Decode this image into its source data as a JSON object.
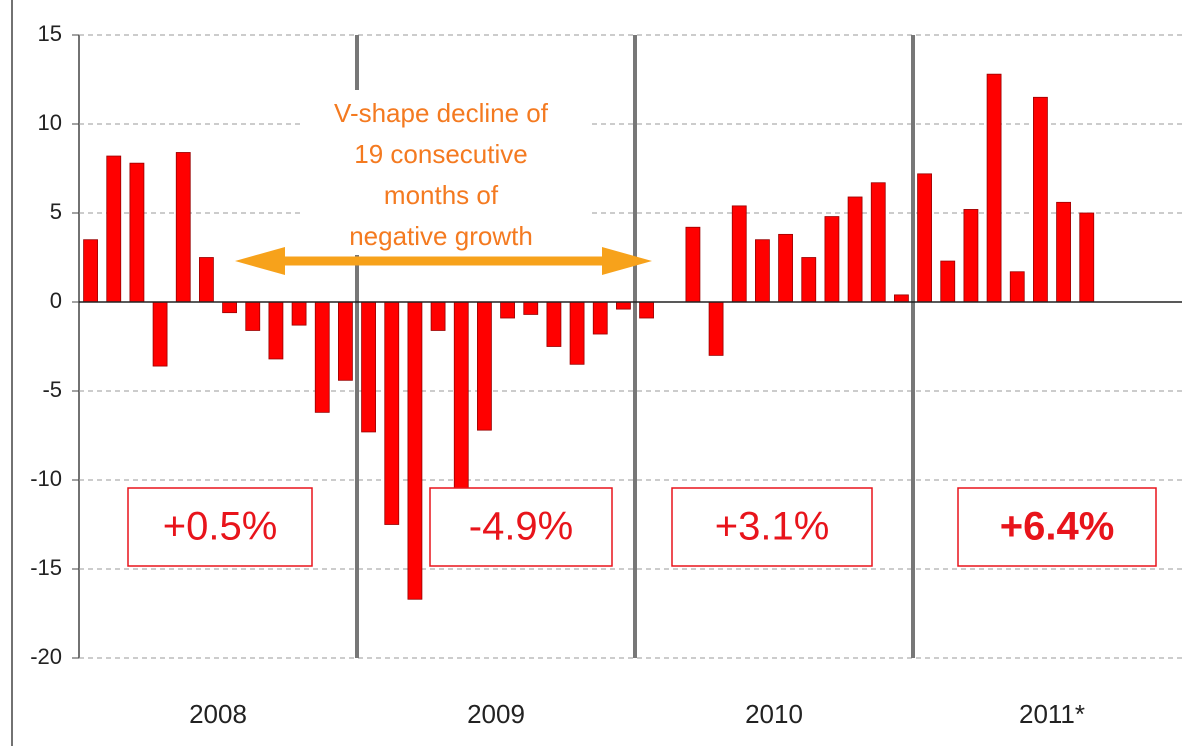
{
  "chart_data": {
    "type": "bar",
    "categories": [
      null,
      null,
      null,
      null,
      null,
      null,
      null,
      null,
      null,
      null,
      null,
      null,
      null,
      null,
      null,
      null,
      null,
      null,
      null,
      null,
      null,
      null,
      null,
      null,
      null,
      null,
      null,
      null,
      null,
      null,
      null,
      null,
      null,
      null,
      null,
      null,
      null,
      null,
      null,
      null,
      null,
      null,
      null,
      null
    ],
    "values": [
      3.5,
      8.2,
      7.8,
      -3.6,
      8.4,
      2.5,
      -0.6,
      -1.6,
      -3.2,
      -1.3,
      -6.2,
      -4.4,
      -7.3,
      -12.5,
      -16.7,
      -1.6,
      -10.5,
      -7.2,
      -0.9,
      -0.7,
      -2.5,
      -3.5,
      -1.8,
      -0.4,
      -0.9,
      0,
      4.2,
      -3.0,
      5.4,
      3.5,
      3.8,
      2.5,
      4.8,
      5.9,
      6.7,
      0.4,
      7.2,
      2.3,
      5.2,
      12.8,
      1.7,
      11.5,
      5.6,
      5.0
    ],
    "color": "#ff0000",
    "ylim": [
      -20,
      15
    ],
    "yticks": [
      15,
      10,
      5,
      0,
      -5,
      -10,
      -15,
      -20
    ],
    "grid": true,
    "year_labels": [
      "2008",
      "2009",
      "2010",
      "2011*"
    ],
    "year_growth": [
      "+0.5%",
      "-4.9%",
      "+3.1%",
      "+6.4%"
    ],
    "annotation": [
      "V-shape decline of",
      "19 consecutive",
      "months of",
      "negative growth"
    ]
  }
}
